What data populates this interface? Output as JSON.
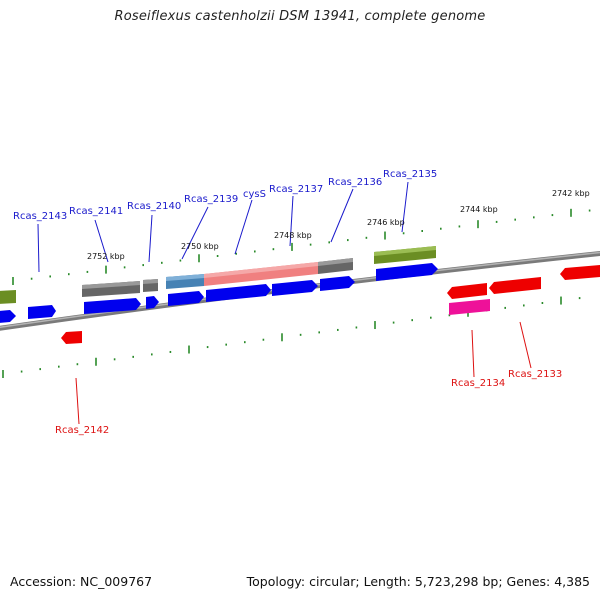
{
  "title": "Roseiflexus castenholzii DSM 13941, complete genome",
  "footer": {
    "accession": "Accession: NC_009767",
    "summary": "Topology: circular; Length: 5,723,298 bp; Genes: 4,385"
  },
  "colors": {
    "backbone": "#808080",
    "tick": "#2a8a2a",
    "blue_label": "#1a1acc",
    "red_label": "#dd1111",
    "gene_blue": "#0000ee",
    "gene_red": "#ee0000",
    "gene_grey": "#666666",
    "gene_olive": "#6b8e23",
    "gene_salmon": "#f08080",
    "gene_steel": "#4682b4",
    "gene_magenta": "#ee1199"
  },
  "kbp_labels": [
    "2752 kbp",
    "2750 kbp",
    "2748 kbp",
    "2746 kbp",
    "2744 kbp",
    "2742 kbp"
  ],
  "gene_labels_top": [
    "Rcas_2143",
    "Rcas_2141",
    "Rcas_2140",
    "Rcas_2139",
    "cysS",
    "Rcas_2137",
    "Rcas_2136",
    "Rcas_2135"
  ],
  "gene_labels_bottom": [
    "Rcas_2142",
    "Rcas_2134",
    "Rcas_2133"
  ]
}
